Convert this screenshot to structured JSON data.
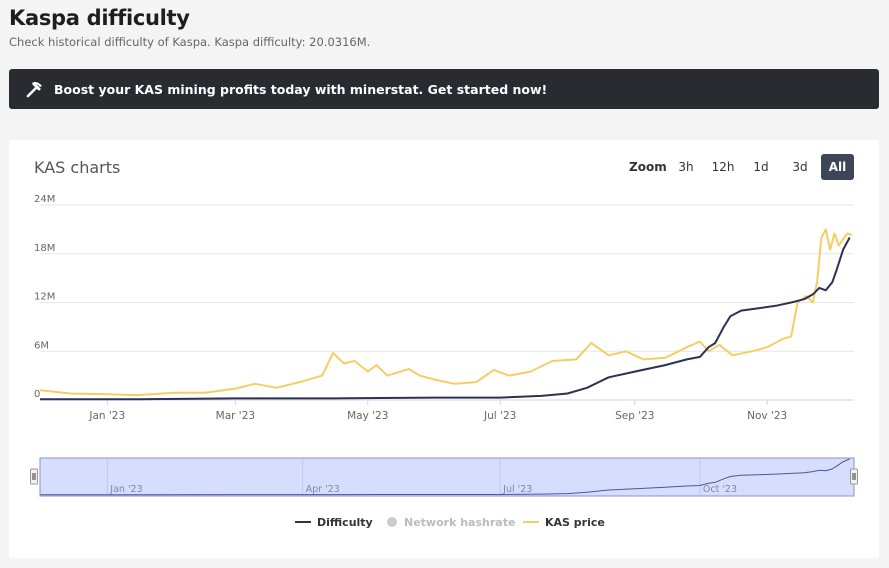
{
  "page": {
    "title": "Kaspa difficulty",
    "subtitle": "Check historical difficulty of Kaspa. Kaspa difficulty: 20.0316M."
  },
  "banner": {
    "text": "Boost your KAS mining profits today with minerstat. Get started now!",
    "icon": "pickaxe-icon"
  },
  "chart": {
    "heading": "KAS charts",
    "zoom": {
      "label": "Zoom",
      "options": [
        "3h",
        "12h",
        "1d",
        "3d",
        "All"
      ],
      "active": "All"
    },
    "legend": [
      {
        "name": "Difficulty",
        "color": "#2f3052",
        "visible": true
      },
      {
        "name": "Network hashrate",
        "color": "#cccccc",
        "visible": false
      },
      {
        "name": "KAS price",
        "color": "#f5cd63",
        "visible": true
      }
    ],
    "navigator_ticks": [
      "Jan '23",
      "Apr '23",
      "Jul '23",
      "Oct '23"
    ]
  },
  "chart_data": {
    "type": "line",
    "title": "KAS charts",
    "x_ticks": [
      "Jan '23",
      "Mar '23",
      "May '23",
      "Jul '23",
      "Sep '23",
      "Nov '23"
    ],
    "y_ticks": [
      "0",
      "6M",
      "12M",
      "18M",
      "24M"
    ],
    "ylim": [
      0,
      24
    ],
    "xlim": [
      "2022-12-01",
      "2023-12-11"
    ],
    "grid": true,
    "legend_position": "bottom",
    "series": [
      {
        "name": "Difficulty",
        "color": "#2f3052",
        "points": [
          [
            "2022-12-01",
            0.1
          ],
          [
            "2023-01-15",
            0.1
          ],
          [
            "2023-03-01",
            0.2
          ],
          [
            "2023-04-15",
            0.2
          ],
          [
            "2023-06-01",
            0.3
          ],
          [
            "2023-07-01",
            0.3
          ],
          [
            "2023-07-20",
            0.5
          ],
          [
            "2023-08-01",
            0.8
          ],
          [
            "2023-08-10",
            1.5
          ],
          [
            "2023-08-20",
            2.8
          ],
          [
            "2023-09-01",
            3.5
          ],
          [
            "2023-09-15",
            4.3
          ],
          [
            "2023-09-25",
            5.0
          ],
          [
            "2023-10-01",
            5.3
          ],
          [
            "2023-10-05",
            6.5
          ],
          [
            "2023-10-08",
            7.0
          ],
          [
            "2023-10-12",
            9.0
          ],
          [
            "2023-10-15",
            10.3
          ],
          [
            "2023-10-20",
            11.0
          ],
          [
            "2023-10-28",
            11.3
          ],
          [
            "2023-11-05",
            11.6
          ],
          [
            "2023-11-12",
            12.0
          ],
          [
            "2023-11-18",
            12.4
          ],
          [
            "2023-11-22",
            13.0
          ],
          [
            "2023-11-25",
            13.8
          ],
          [
            "2023-11-28",
            13.5
          ],
          [
            "2023-12-01",
            14.5
          ],
          [
            "2023-12-03",
            16.0
          ],
          [
            "2023-12-06",
            18.5
          ],
          [
            "2023-12-09",
            20.0
          ]
        ]
      },
      {
        "name": "KAS price",
        "color": "#f5cd63",
        "points": [
          [
            "2022-12-01",
            1.2
          ],
          [
            "2022-12-15",
            0.8
          ],
          [
            "2023-01-01",
            0.7
          ],
          [
            "2023-01-15",
            0.6
          ],
          [
            "2023-02-01",
            0.9
          ],
          [
            "2023-02-15",
            0.9
          ],
          [
            "2023-03-01",
            1.4
          ],
          [
            "2023-03-10",
            2.0
          ],
          [
            "2023-03-20",
            1.5
          ],
          [
            "2023-04-01",
            2.3
          ],
          [
            "2023-04-10",
            3.0
          ],
          [
            "2023-04-15",
            5.8
          ],
          [
            "2023-04-20",
            4.5
          ],
          [
            "2023-04-25",
            4.8
          ],
          [
            "2023-05-01",
            3.5
          ],
          [
            "2023-05-05",
            4.3
          ],
          [
            "2023-05-10",
            3.0
          ],
          [
            "2023-05-20",
            3.8
          ],
          [
            "2023-05-25",
            3.0
          ],
          [
            "2023-06-01",
            2.5
          ],
          [
            "2023-06-10",
            2.0
          ],
          [
            "2023-06-20",
            2.2
          ],
          [
            "2023-06-28",
            3.7
          ],
          [
            "2023-07-05",
            3.0
          ],
          [
            "2023-07-15",
            3.5
          ],
          [
            "2023-07-25",
            4.8
          ],
          [
            "2023-08-05",
            5.0
          ],
          [
            "2023-08-12",
            7.0
          ],
          [
            "2023-08-20",
            5.5
          ],
          [
            "2023-08-28",
            6.0
          ],
          [
            "2023-09-05",
            5.0
          ],
          [
            "2023-09-15",
            5.2
          ],
          [
            "2023-09-25",
            6.5
          ],
          [
            "2023-10-01",
            7.2
          ],
          [
            "2023-10-05",
            6.0
          ],
          [
            "2023-10-10",
            6.8
          ],
          [
            "2023-10-16",
            5.5
          ],
          [
            "2023-10-25",
            6.0
          ],
          [
            "2023-11-01",
            6.5
          ],
          [
            "2023-11-08",
            7.5
          ],
          [
            "2023-11-12",
            7.8
          ],
          [
            "2023-11-15",
            12.0
          ],
          [
            "2023-11-19",
            12.8
          ],
          [
            "2023-11-22",
            12.0
          ],
          [
            "2023-11-24",
            14.5
          ],
          [
            "2023-11-26",
            20.0
          ],
          [
            "2023-11-28",
            21.0
          ],
          [
            "2023-11-30",
            18.5
          ],
          [
            "2023-12-02",
            20.5
          ],
          [
            "2023-12-04",
            19.0
          ],
          [
            "2023-12-06",
            19.8
          ],
          [
            "2023-12-08",
            20.5
          ],
          [
            "2023-12-10",
            20.3
          ]
        ]
      }
    ]
  }
}
